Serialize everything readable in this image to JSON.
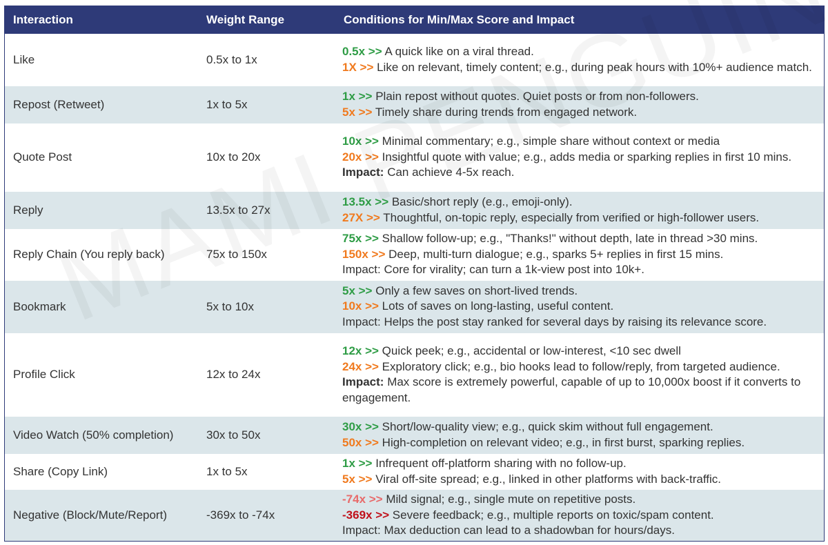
{
  "headers": [
    "Interaction",
    "Weight Range",
    "Conditions for Min/Max Score and Impact"
  ],
  "watermark": "MAMI PENGUIN",
  "rows": [
    {
      "interaction": "Like",
      "weight": "0.5x to 1x",
      "lines": [
        {
          "marker": "0.5x >>",
          "tone": "green",
          "text": " A quick like on a viral thread."
        },
        {
          "marker": "1X >>",
          "tone": "orange",
          "text": " Like on relevant, timely content; e.g., during peak hours with 10%+ audience match."
        }
      ]
    },
    {
      "interaction": "Repost (Retweet)",
      "weight": "1x to 5x",
      "lines": [
        {
          "marker": "1x >>",
          "tone": "green",
          "text": " Plain repost without quotes. Quiet posts or from non-followers."
        },
        {
          "marker": "5x >>",
          "tone": "orange",
          "text": " Timely share during trends from engaged network."
        }
      ]
    },
    {
      "interaction": "Quote Post",
      "weight": "10x to 20x",
      "lines": [
        {
          "marker": "10x >>",
          "tone": "green",
          "text": " Minimal commentary; e.g., simple share without context or media"
        },
        {
          "marker": "20x >>",
          "tone": "orange",
          "text": " Insightful quote with value; e.g., adds media or sparking replies in first 10 mins."
        },
        {
          "marker": "Impact:",
          "tone": "bold-label",
          "text": " Can achieve 4-5x reach."
        }
      ]
    },
    {
      "interaction": "Reply",
      "weight": "13.5x to 27x",
      "lines": [
        {
          "marker": "13.5x >>",
          "tone": "green",
          "text": " Basic/short reply (e.g., emoji-only)."
        },
        {
          "marker": "27X >>",
          "tone": "orange",
          "text": " Thoughtful, on-topic reply, especially from verified or high-follower users."
        }
      ]
    },
    {
      "interaction": "Reply Chain (You reply back)",
      "weight": "75x to 150x",
      "lines": [
        {
          "marker": "75x >>",
          "tone": "green",
          "text": " Shallow follow-up; e.g., \"Thanks!\" without depth, late in thread >30 mins."
        },
        {
          "marker": "150x >>",
          "tone": "orange",
          "text": " Deep, multi-turn dialogue; e.g., sparks 5+ replies in first 15 mins."
        },
        {
          "marker": "",
          "tone": "plain",
          "text": "Impact: Core for virality; can turn a 1k-view post into 10k+."
        }
      ]
    },
    {
      "interaction": "Bookmark",
      "weight": "5x to 10x",
      "lines": [
        {
          "marker": "5x >>",
          "tone": "green",
          "text": " Only a few saves on short-lived trends."
        },
        {
          "marker": "10x >>",
          "tone": "orange",
          "text": " Lots of saves on long-lasting, useful content."
        },
        {
          "marker": "",
          "tone": "plain",
          "text": "Impact: Helps the post stay ranked for several days by raising its relevance score."
        }
      ]
    },
    {
      "interaction": "Profile Click",
      "weight": "12x to 24x",
      "lines": [
        {
          "marker": "12x >>",
          "tone": "green",
          "text": " Quick peek; e.g., accidental or low-interest, <10 sec dwell"
        },
        {
          "marker": "24x >>",
          "tone": "orange",
          "text": " Exploratory click; e.g., bio hooks lead to follow/reply, from targeted audience."
        },
        {
          "marker": "Impact:",
          "tone": "bold-label",
          "text": " Max score is extremely powerful, capable of up to 10,000x boost if it converts to engagement."
        }
      ]
    },
    {
      "interaction": "Video Watch (50% completion)",
      "weight": "30x to 50x",
      "lines": [
        {
          "marker": "30x >>",
          "tone": "green",
          "text": " Short/low-quality view; e.g., quick skim without full engagement."
        },
        {
          "marker": "50x >>",
          "tone": "orange",
          "text": " High-completion on relevant video; e.g., in first burst, sparking replies."
        }
      ]
    },
    {
      "interaction": "Share (Copy Link)",
      "weight": "1x to 5x",
      "lines": [
        {
          "marker": "1x >>",
          "tone": "green",
          "text": " Infrequent off-platform sharing with no follow-up."
        },
        {
          "marker": "5x >>",
          "tone": "orange",
          "text": " Viral off-site spread; e.g., linked in other platforms with back-traffic."
        }
      ]
    },
    {
      "interaction": "Negative (Block/Mute/Report)",
      "weight": "-369x to -74x",
      "lines": [
        {
          "marker": "-74x >>",
          "tone": "neg1",
          "text": " Mild signal; e.g., single mute on repetitive posts."
        },
        {
          "marker": "-369x >>",
          "tone": "neg2",
          "text": " Severe feedback; e.g., multiple reports on toxic/spam content."
        },
        {
          "marker": "",
          "tone": "plain",
          "text": "Impact: Max deduction can lead to a shadowban for hours/days."
        }
      ]
    }
  ]
}
